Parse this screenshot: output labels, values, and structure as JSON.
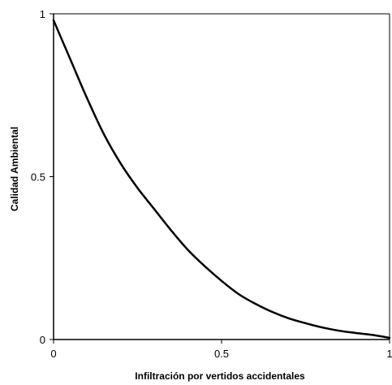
{
  "chart_data": {
    "type": "line",
    "title": "",
    "xlabel": "Infiltración por vertidos accidentales",
    "ylabel": "Calidad Ambiental",
    "xlim": [
      0,
      1
    ],
    "ylim": [
      0,
      1
    ],
    "grid": false,
    "x_ticks": [
      "0",
      "0.5",
      "1"
    ],
    "y_ticks": [
      "0",
      "0.5",
      "1"
    ],
    "series": [
      {
        "color": "#000000",
        "x": [
          0,
          0.05,
          0.1,
          0.15,
          0.2,
          0.25,
          0.3,
          0.35,
          0.4,
          0.45,
          0.5,
          0.55,
          0.6,
          0.65,
          0.7,
          0.75,
          0.8,
          0.85,
          0.9,
          0.95,
          1.0
        ],
        "y": [
          0.98,
          0.86,
          0.74,
          0.63,
          0.54,
          0.465,
          0.4,
          0.335,
          0.275,
          0.225,
          0.18,
          0.14,
          0.11,
          0.085,
          0.065,
          0.05,
          0.037,
          0.027,
          0.02,
          0.014,
          0.005
        ]
      }
    ]
  }
}
